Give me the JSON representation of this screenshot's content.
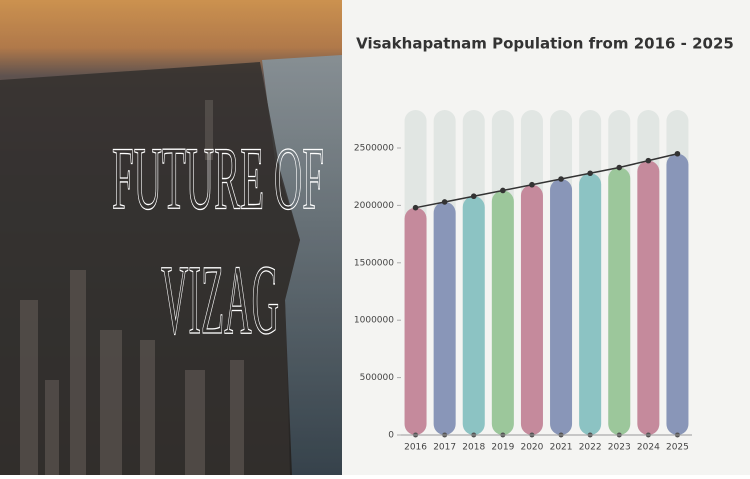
{
  "poster": {
    "lines": [
      "FUTURE OF",
      "VIZAG"
    ]
  },
  "chart_data": {
    "type": "bar_line",
    "title": "Visakhapatnam Population from 2016 - 2025",
    "categories": [
      "2016",
      "2017",
      "2018",
      "2019",
      "2020",
      "2021",
      "2022",
      "2023",
      "2024",
      "2025"
    ],
    "values": [
      1980000,
      2030000,
      2080000,
      2130000,
      2180000,
      2230000,
      2280000,
      2330000,
      2390000,
      2450000
    ],
    "colors": [
      "#c58a9c",
      "#8996b8",
      "#8cc3c3",
      "#9cc79b",
      "#c58a9c",
      "#8996b8",
      "#8cc3c3",
      "#9cc79b",
      "#c58a9c",
      "#8996b8"
    ],
    "line_color": "#333333",
    "ylim": [
      0,
      2500000
    ],
    "yticks": [
      0,
      500000,
      1000000,
      1500000,
      2000000,
      2500000
    ]
  }
}
